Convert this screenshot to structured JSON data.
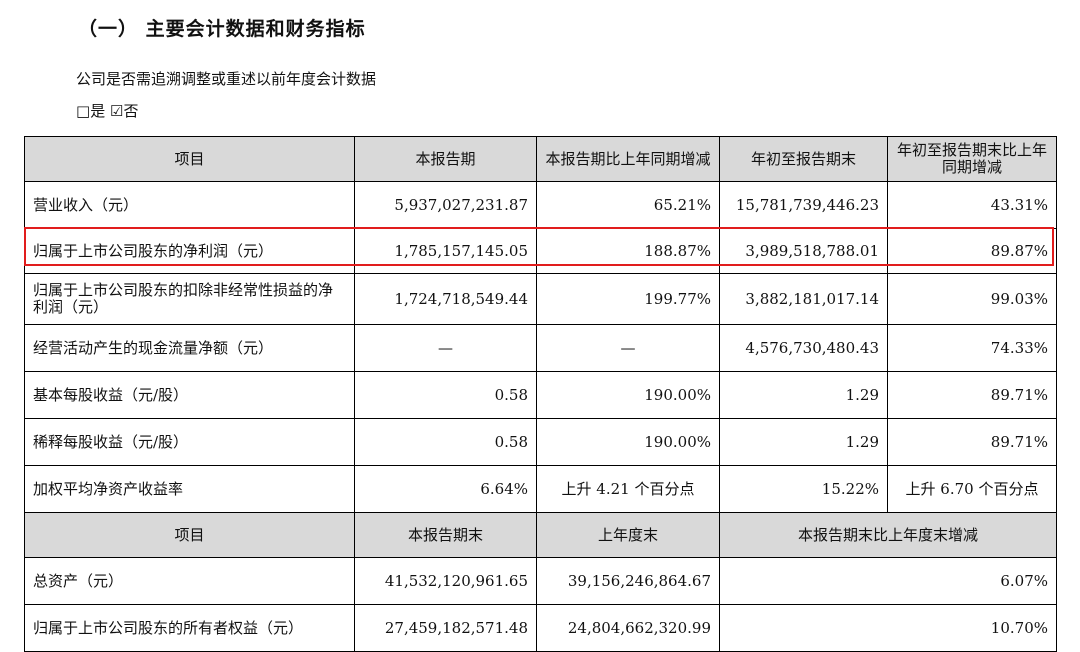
{
  "section_title": "（一） 主要会计数据和财务指标",
  "question": "公司是否需追溯调整或重述以前年度会计数据",
  "options": {
    "yes_box": "□",
    "yes_label": "是",
    "no_box": "☑",
    "no_label": "否"
  },
  "highlight_color": "#e11d1d",
  "header_bg": "#d9d9d9",
  "table1": {
    "headers": [
      "项目",
      "本报告期",
      "本报告期比上年同期增减",
      "年初至报告期末",
      "年初至报告期末比上年同期增减"
    ],
    "rows": [
      {
        "item": "营业收入（元）",
        "current": "5,937,027,231.87",
        "current_change": "65.21%",
        "ytd": "15,781,739,446.23",
        "ytd_change": "43.31%"
      },
      {
        "item": "归属于上市公司股东的净利润（元）",
        "current": "1,785,157,145.05",
        "current_change": "188.87%",
        "ytd": "3,989,518,788.01",
        "ytd_change": "89.87%"
      },
      {
        "item": "归属于上市公司股东的扣除非经常性损益的净利润（元）",
        "current": "1,724,718,549.44",
        "current_change": "199.77%",
        "ytd": "3,882,181,017.14",
        "ytd_change": "99.03%"
      },
      {
        "item": "经营活动产生的现金流量净额（元）",
        "current": "—",
        "current_change": "—",
        "ytd": "4,576,730,480.43",
        "ytd_change": "74.33%"
      },
      {
        "item": "基本每股收益（元/股）",
        "current": "0.58",
        "current_change": "190.00%",
        "ytd": "1.29",
        "ytd_change": "89.71%"
      },
      {
        "item": "稀释每股收益（元/股）",
        "current": "0.58",
        "current_change": "190.00%",
        "ytd": "1.29",
        "ytd_change": "89.71%"
      },
      {
        "item": "加权平均净资产收益率",
        "current": "6.64%",
        "current_change": "上升 4.21 个百分点",
        "ytd": "15.22%",
        "ytd_change": "上升 6.70 个百分点"
      }
    ]
  },
  "table2": {
    "headers": [
      "项目",
      "本报告期末",
      "上年度末",
      "本报告期末比上年度末增减"
    ],
    "rows": [
      {
        "item": "总资产（元）",
        "period_end": "41,532,120,961.65",
        "prior_year_end": "39,156,246,864.67",
        "change": "6.07%"
      },
      {
        "item": "归属于上市公司股东的所有者权益（元）",
        "period_end": "27,459,182,571.48",
        "prior_year_end": "24,804,662,320.99",
        "change": "10.70%"
      }
    ]
  }
}
